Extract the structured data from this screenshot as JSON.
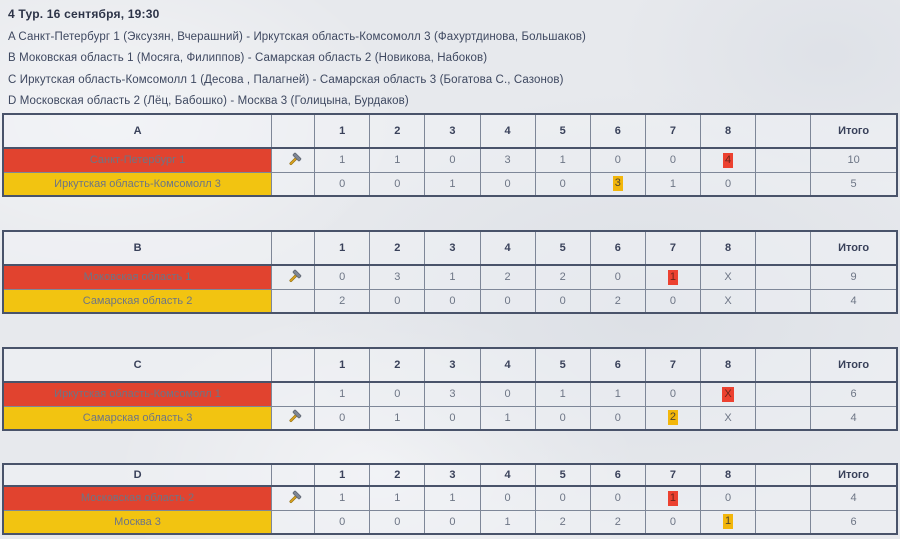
{
  "header": {
    "title": "4 Тур. 16 сентября, 19:30",
    "matches": [
      "A Санкт-Петербург 1 (Эксузян, Вчерашний) - Иркутская область-Комсомолл 3 (Фахуртдинова, Большаков)",
      "B Моковская область 1 (Мосяга, Филиппов) - Самарская область 2 (Новикова, Набоков)",
      "C Иркутская область-Комсомолл 1 (Десова , Палагней) - Самарская область 3 (Богатова С., Сазонов)",
      "D Московская область 2 (Лёц, Бабошко) - Москва 3 (Голицына, Бурдаков)"
    ]
  },
  "scoreboard": {
    "end_headers": [
      "1",
      "2",
      "3",
      "4",
      "5",
      "6",
      "7",
      "8"
    ],
    "total_label": "Итого",
    "hammer_icon": "hammer-icon"
  },
  "colors": {
    "team_red": "#e1432f",
    "team_yellow": "#f2c411",
    "highlight_red": "#ec4130",
    "highlight_yellow": "#f2b60b",
    "page_background": "#e7e9ed",
    "border_dark": "#49536a"
  },
  "sheets": [
    {
      "letter": "A",
      "teams": [
        {
          "name": "Санкт-Петербург 1",
          "color": "red",
          "hammer": true,
          "ends": [
            "1",
            "1",
            "0",
            "3",
            "1",
            "0",
            "0",
            "4"
          ],
          "hl_index": 7,
          "total": "10"
        },
        {
          "name": "Иркутская область-Комсомолл 3",
          "color": "yellow",
          "hammer": false,
          "ends": [
            "0",
            "0",
            "1",
            "0",
            "0",
            "3",
            "1",
            "0"
          ],
          "hl_index": 5,
          "total": "5"
        }
      ]
    },
    {
      "letter": "B",
      "teams": [
        {
          "name": "Моковская область 1",
          "color": "red",
          "hammer": true,
          "ends": [
            "0",
            "3",
            "1",
            "2",
            "2",
            "0",
            "1",
            "X"
          ],
          "hl_index": 6,
          "total": "9"
        },
        {
          "name": "Самарская область 2",
          "color": "yellow",
          "hammer": false,
          "ends": [
            "2",
            "0",
            "0",
            "0",
            "0",
            "2",
            "0",
            "X"
          ],
          "hl_index": null,
          "total": "4"
        }
      ]
    },
    {
      "letter": "C",
      "teams": [
        {
          "name": "Иркутская область-Комсомолл 1",
          "color": "red",
          "hammer": false,
          "ends": [
            "1",
            "0",
            "3",
            "0",
            "1",
            "1",
            "0",
            "X"
          ],
          "hl_index": 7,
          "total": "6"
        },
        {
          "name": "Самарская область 3",
          "color": "yellow",
          "hammer": true,
          "ends": [
            "0",
            "1",
            "0",
            "1",
            "0",
            "0",
            "2",
            "X"
          ],
          "hl_index": 6,
          "total": "4"
        }
      ]
    },
    {
      "letter": "D",
      "teams": [
        {
          "name": "Московская область 2",
          "color": "red",
          "hammer": true,
          "ends": [
            "1",
            "1",
            "1",
            "0",
            "0",
            "0",
            "1",
            "0"
          ],
          "hl_index": 6,
          "total": "4"
        },
        {
          "name": "Москва 3",
          "color": "yellow",
          "hammer": false,
          "ends": [
            "0",
            "0",
            "0",
            "1",
            "2",
            "2",
            "0",
            "1"
          ],
          "hl_index": 7,
          "total": "6"
        }
      ]
    }
  ]
}
